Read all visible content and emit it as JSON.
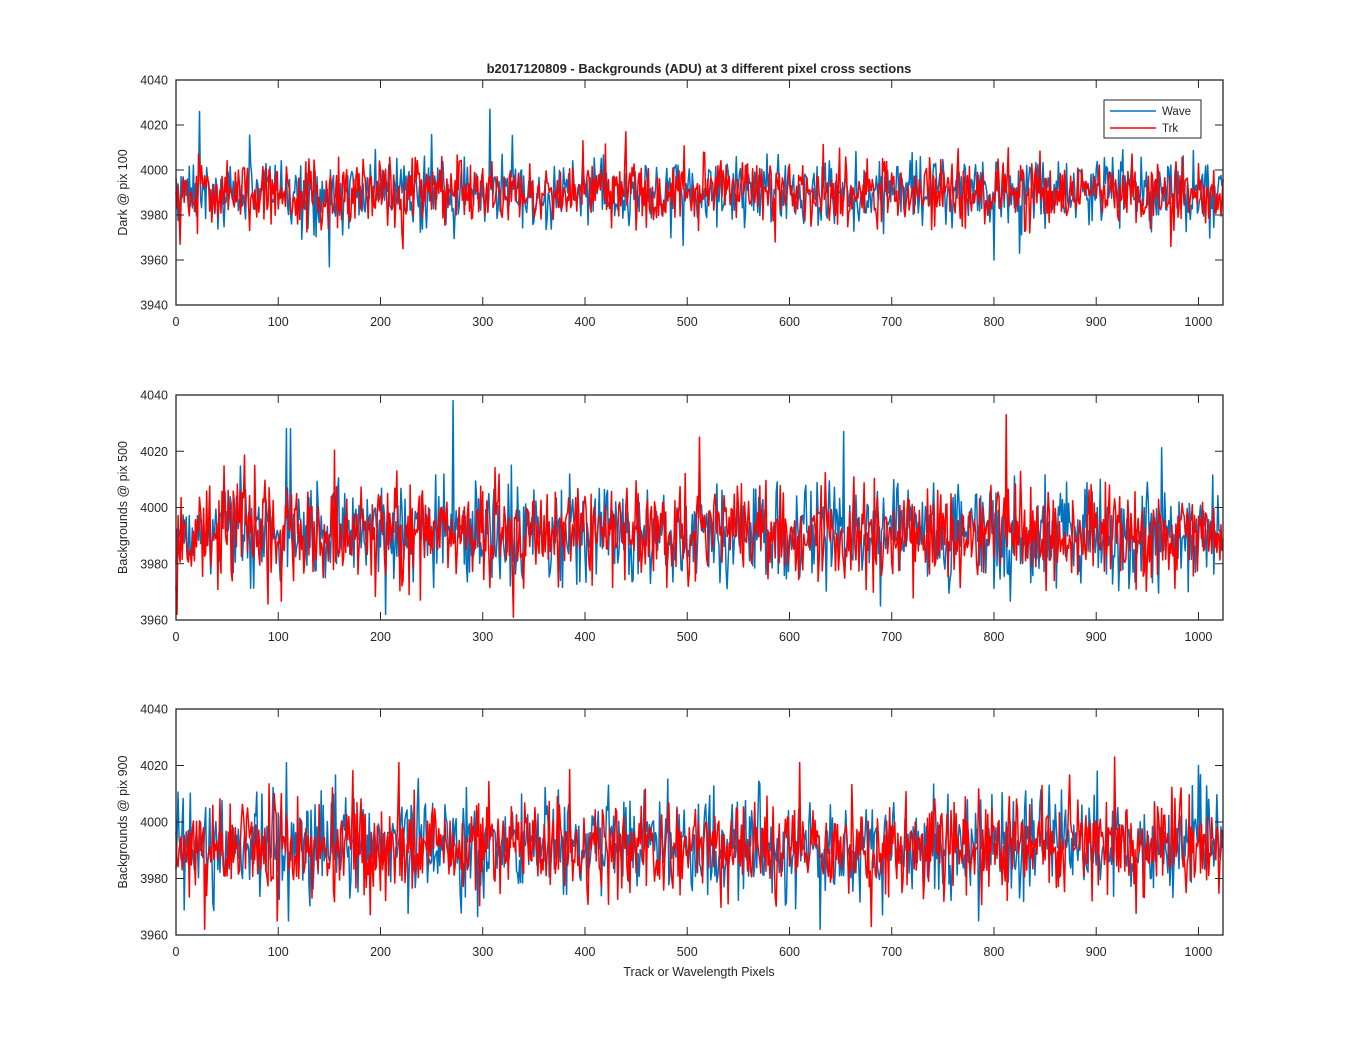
{
  "title": "b2017120809 - Backgrounds (ADU) at 3 different pixel cross sections",
  "xlabel": "Track or Wavelength Pixels",
  "legend": {
    "placement": "top-right of first panel",
    "entries": [
      "Wave",
      "Trk"
    ]
  },
  "colors": {
    "wave": "#0072bd",
    "trk": "#ff0000",
    "axis": "#262626"
  },
  "chart_data": [
    {
      "type": "line",
      "ylabel": "Dark @ pix 100",
      "xlim": [
        0,
        1024
      ],
      "ylim": [
        3940,
        4040
      ],
      "xticks": [
        "0",
        "100",
        "200",
        "300",
        "400",
        "500",
        "600",
        "700",
        "800",
        "900",
        "1000"
      ],
      "yticks": [
        "3940",
        "3960",
        "3980",
        "4000",
        "4020",
        "4040"
      ],
      "series": [
        {
          "name": "Wave",
          "mean": 3990,
          "spread": 7.5,
          "min_approx": 3957,
          "max_approx": 4027,
          "spikes": [
            [
              23,
              4026
            ],
            [
              307,
              4027
            ],
            [
              150,
              3957
            ],
            [
              800,
              3960
            ],
            [
              825,
              3963
            ]
          ]
        },
        {
          "name": "Trk",
          "mean": 3990,
          "spread": 7.5,
          "min_approx": 3965,
          "max_approx": 4017,
          "spikes": [
            [
              440,
              4017
            ],
            [
              4,
              3967
            ],
            [
              222,
              3965
            ],
            [
              973,
              3966
            ]
          ]
        }
      ]
    },
    {
      "type": "line",
      "ylabel": "Backgrounds @ pix 500",
      "xlim": [
        0,
        1024
      ],
      "ylim": [
        3960,
        4040
      ],
      "xticks": [
        "0",
        "100",
        "200",
        "300",
        "400",
        "500",
        "600",
        "700",
        "800",
        "900",
        "1000"
      ],
      "yticks": [
        "3960",
        "3980",
        "4000",
        "4020",
        "4040"
      ],
      "series": [
        {
          "name": "Wave",
          "mean": 3991,
          "spread": 9,
          "min_approx": 3962,
          "max_approx": 4038,
          "spikes": [
            [
              271,
              4038
            ],
            [
              108,
              4028
            ],
            [
              112,
              4028
            ],
            [
              653,
              4027
            ],
            [
              205,
              3962
            ]
          ]
        },
        {
          "name": "Trk",
          "mean": 3991,
          "spread": 9,
          "min_approx": 3961,
          "max_approx": 4033,
          "spikes": [
            [
              812,
              4033
            ],
            [
              512,
              4025
            ],
            [
              330,
              3961
            ],
            [
              1,
              3962
            ]
          ]
        }
      ]
    },
    {
      "type": "line",
      "ylabel": "Backgrounds @ pix 900",
      "xlim": [
        0,
        1024
      ],
      "ylim": [
        3960,
        4040
      ],
      "xticks": [
        "0",
        "100",
        "200",
        "300",
        "400",
        "500",
        "600",
        "700",
        "800",
        "900",
        "1000"
      ],
      "yticks": [
        "3960",
        "3980",
        "4000",
        "4020",
        "4040"
      ],
      "series": [
        {
          "name": "Wave",
          "mean": 3991,
          "spread": 9,
          "min_approx": 3962,
          "max_approx": 4021,
          "spikes": [
            [
              108,
              4021
            ],
            [
              1000,
              4020
            ],
            [
              630,
              3962
            ],
            [
              110,
              3965
            ]
          ]
        },
        {
          "name": "Trk",
          "mean": 3991,
          "spread": 9,
          "min_approx": 3962,
          "max_approx": 4023,
          "spikes": [
            [
              918,
              4023
            ],
            [
              218,
              4021
            ],
            [
              610,
              4021
            ],
            [
              28,
              3962
            ],
            [
              680,
              3963
            ]
          ]
        }
      ]
    }
  ]
}
